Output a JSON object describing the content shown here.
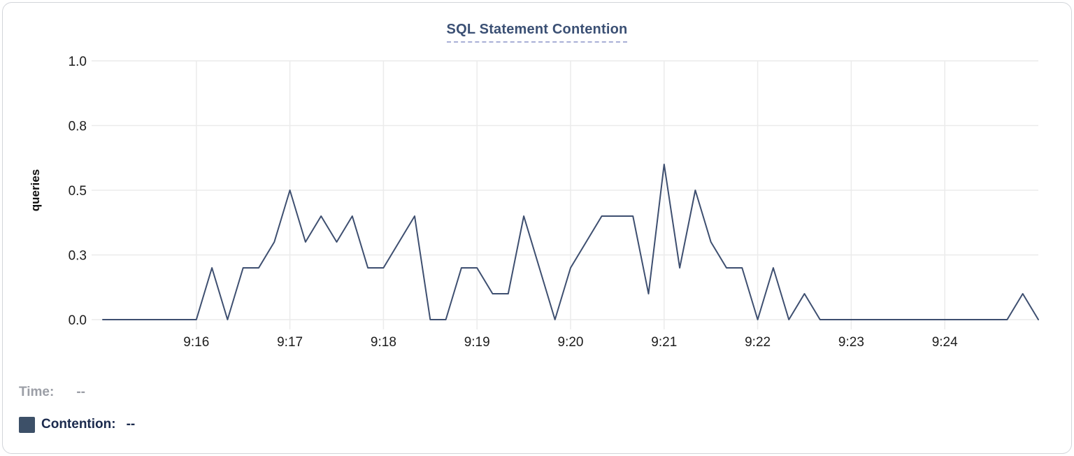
{
  "header": {
    "title": "SQL Statement Contention"
  },
  "y_axis": {
    "label": "queries"
  },
  "legend": {
    "time_label": "Time:",
    "time_value": "--",
    "series_label": "Contention:",
    "series_value": "--",
    "swatch_color": "#3d5068"
  },
  "colors": {
    "line": "#3e4f70",
    "grid": "#ebebeb",
    "axis_text": "#1c1c1c",
    "title_text": "#3b5074",
    "title_underline": "#a8afd6",
    "legend_time_text": "#9b9ea6",
    "legend_series_text": "#1b2a4d",
    "card_border": "#d2d5da",
    "background": "#ffffff"
  },
  "chart_data": {
    "type": "line",
    "title": "SQL Statement Contention",
    "xlabel": "",
    "ylabel": "queries",
    "ylim": [
      0,
      1.0
    ],
    "grid": true,
    "legend_position": "bottom-left",
    "x_start": "9:15:00",
    "x_end": "9:25:00",
    "x_span_seconds": 600,
    "sample_interval_seconds": 10,
    "y_ticks": [
      {
        "value": 0,
        "label": "0.0"
      },
      {
        "value": 0.25,
        "label": "0.3"
      },
      {
        "value": 0.5,
        "label": "0.5"
      },
      {
        "value": 0.75,
        "label": "0.8"
      },
      {
        "value": 1.0,
        "label": "1.0"
      }
    ],
    "x_ticks": [
      {
        "offset_s": 60,
        "label": "9:16"
      },
      {
        "offset_s": 120,
        "label": "9:17"
      },
      {
        "offset_s": 180,
        "label": "9:18"
      },
      {
        "offset_s": 240,
        "label": "9:19"
      },
      {
        "offset_s": 300,
        "label": "9:20"
      },
      {
        "offset_s": 360,
        "label": "9:21"
      },
      {
        "offset_s": 420,
        "label": "9:22"
      },
      {
        "offset_s": 480,
        "label": "9:23"
      },
      {
        "offset_s": 540,
        "label": "9:24"
      }
    ],
    "series": [
      {
        "name": "Contention",
        "color": "#3e4f70",
        "values": [
          0,
          0,
          0,
          0,
          0,
          0,
          0,
          0.2,
          0,
          0.2,
          0.2,
          0.3,
          0.5,
          0.3,
          0.4,
          0.3,
          0.4,
          0.2,
          0.2,
          0.3,
          0.4,
          0,
          0,
          0.2,
          0.2,
          0.1,
          0.1,
          0.4,
          0.2,
          0,
          0.2,
          0.3,
          0.4,
          0.4,
          0.4,
          0.1,
          0.6,
          0.2,
          0.5,
          0.3,
          0.2,
          0.2,
          0,
          0.2,
          0,
          0.1,
          0,
          0,
          0,
          0,
          0,
          0,
          0,
          0,
          0,
          0,
          0,
          0,
          0,
          0.1,
          0
        ]
      }
    ]
  }
}
